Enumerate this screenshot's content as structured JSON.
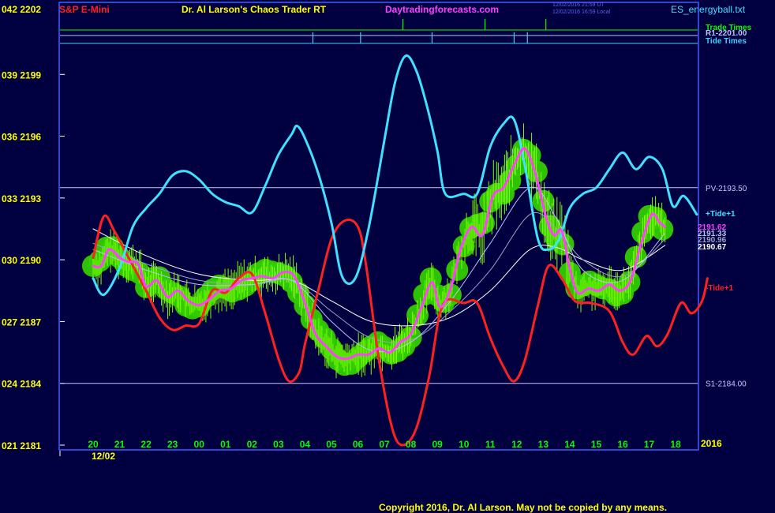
{
  "header": {
    "symbol": "S&P E-Mini",
    "title": "Dr. Al Larson's Chaos Trader RT",
    "site": "Daytradingforecasts.com",
    "stamp1": "12/02/2016 21:59 UT",
    "stamp2": "12/02/2016 16:59 Local",
    "file": "ES_energyball.txt"
  },
  "footer": {
    "copyright": "Copyright 2016, Dr. Al Larson. May not be copied by any means."
  },
  "time_rows": [
    {
      "label": "Trade Times",
      "color": "#00ff00",
      "marks": [
        11.7,
        14.8,
        17.1
      ]
    },
    {
      "label": "R1-2201.00",
      "color": "#c0c0ff",
      "marks": []
    },
    {
      "label": "Tide Times",
      "color": "#40d0ff",
      "marks": [
        8.3,
        10.1,
        12.8,
        15.9,
        16.4
      ]
    }
  ],
  "colors": {
    "background": "#000040",
    "frame": "#4060ff",
    "axis_text": "#ffff00",
    "hour_text": "#00ff00",
    "tide_plus": "#40e0ff",
    "tide_minus": "#ff2020",
    "price": "#ff40ff",
    "band": "#30cc00",
    "bars": "#80ff00"
  },
  "chart_data": {
    "type": "line",
    "title": "S&P E-Mini",
    "y_tick_labels": [
      "042 2202",
      "039 2199",
      "036 2196",
      "033 2193",
      "030 2190",
      "027 2187",
      "024 2184",
      "021 2181"
    ],
    "ylim": [
      2181,
      2202
    ],
    "x_tick_labels": [
      "20",
      "21",
      "22",
      "23",
      "00",
      "01",
      "02",
      "03",
      "04",
      "05",
      "06",
      "07",
      "08",
      "09",
      "10",
      "11",
      "12",
      "13",
      "14",
      "15",
      "16",
      "17",
      "18"
    ],
    "date_label": "12/02",
    "year_label": "2016",
    "levels": [
      {
        "name": "PV-2193.50",
        "value": 2193.5
      },
      {
        "name": "S1-2184.00",
        "value": 2184.0
      }
    ],
    "series": [
      {
        "name": "+Tide+1",
        "color": "#40e0ff",
        "points": [
          [
            0,
            2189.1
          ],
          [
            0.4,
            2188.3
          ],
          [
            1,
            2189.6
          ],
          [
            1.5,
            2191.6
          ],
          [
            2,
            2192.5
          ],
          [
            2.5,
            2193.2
          ],
          [
            3,
            2194.1
          ],
          [
            3.5,
            2194.3
          ],
          [
            4,
            2193.9
          ],
          [
            4.5,
            2193.2
          ],
          [
            5,
            2192.8
          ],
          [
            5.5,
            2192.6
          ],
          [
            6,
            2192.3
          ],
          [
            6.5,
            2193.6
          ],
          [
            7,
            2195.1
          ],
          [
            7.5,
            2196.1
          ],
          [
            7.7,
            2196.5
          ],
          [
            8,
            2195.9
          ],
          [
            8.5,
            2194.2
          ],
          [
            9,
            2191.8
          ],
          [
            9.4,
            2189.2
          ],
          [
            9.9,
            2189.1
          ],
          [
            10.4,
            2191.5
          ],
          [
            11,
            2195.8
          ],
          [
            11.4,
            2198.6
          ],
          [
            11.8,
            2199.9
          ],
          [
            12.2,
            2199.2
          ],
          [
            12.6,
            2197.5
          ],
          [
            13,
            2195.3
          ],
          [
            13.3,
            2193.2
          ],
          [
            14,
            2193.2
          ],
          [
            14.5,
            2193.2
          ],
          [
            15,
            2195.5
          ],
          [
            15.5,
            2196.6
          ],
          [
            15.9,
            2196.8
          ],
          [
            16.3,
            2194.6
          ],
          [
            16.8,
            2191.0
          ],
          [
            17.2,
            2190.5
          ],
          [
            17.6,
            2191.0
          ],
          [
            18,
            2192.5
          ],
          [
            18.5,
            2193.2
          ],
          [
            19,
            2193.5
          ],
          [
            19.5,
            2194.4
          ],
          [
            20,
            2195.2
          ],
          [
            20.5,
            2194.4
          ],
          [
            21,
            2195.0
          ],
          [
            21.5,
            2194.4
          ],
          [
            21.9,
            2192.6
          ],
          [
            22.3,
            2193.1
          ],
          [
            22.8,
            2192.2
          ]
        ]
      },
      {
        "name": "-Tide+1",
        "color": "#ff2020",
        "points": [
          [
            0,
            2190.1
          ],
          [
            0.4,
            2192.1
          ],
          [
            0.8,
            2191.4
          ],
          [
            1.3,
            2190.2
          ],
          [
            2,
            2188.5
          ],
          [
            2.5,
            2187.2
          ],
          [
            3,
            2186.6
          ],
          [
            3.5,
            2186.8
          ],
          [
            4,
            2186.9
          ],
          [
            4.5,
            2188.5
          ],
          [
            5,
            2188.4
          ],
          [
            5.5,
            2189.1
          ],
          [
            6,
            2189.3
          ],
          [
            6.5,
            2187.4
          ],
          [
            7,
            2185.2
          ],
          [
            7.4,
            2184.1
          ],
          [
            7.8,
            2184.6
          ],
          [
            8,
            2185.9
          ],
          [
            8.5,
            2188.5
          ],
          [
            9,
            2191.0
          ],
          [
            9.5,
            2191.9
          ],
          [
            10,
            2191.6
          ],
          [
            10.3,
            2189.8
          ],
          [
            10.8,
            2185.1
          ],
          [
            11.3,
            2181.8
          ],
          [
            11.7,
            2181.0
          ],
          [
            12.2,
            2181.8
          ],
          [
            12.7,
            2184.4
          ],
          [
            13.2,
            2187.8
          ],
          [
            14,
            2187.9
          ],
          [
            14.5,
            2187.9
          ],
          [
            15,
            2186.2
          ],
          [
            15.5,
            2184.8
          ],
          [
            15.9,
            2184.1
          ],
          [
            16.3,
            2185.1
          ],
          [
            16.8,
            2187.8
          ],
          [
            17.2,
            2189.7
          ],
          [
            17.7,
            2189.1
          ],
          [
            18.2,
            2188.0
          ],
          [
            18.8,
            2187.9
          ],
          [
            19.5,
            2187.5
          ],
          [
            20,
            2186.0
          ],
          [
            20.4,
            2185.4
          ],
          [
            20.9,
            2186.3
          ],
          [
            21.3,
            2185.8
          ],
          [
            21.7,
            2186.4
          ],
          [
            22.2,
            2187.9
          ],
          [
            22.6,
            2187.4
          ],
          [
            23,
            2188.0
          ],
          [
            23.2,
            2189.1
          ]
        ]
      },
      {
        "name": "Price",
        "value_label": "2191.62",
        "color": "#ff40ff",
        "points": [
          [
            0,
            2189.7
          ],
          [
            0.3,
            2189.7
          ],
          [
            0.6,
            2190.5
          ],
          [
            1,
            2190.1
          ],
          [
            1.3,
            2189.9
          ],
          [
            1.7,
            2189.8
          ],
          [
            2,
            2188.7
          ],
          [
            2.4,
            2189.0
          ],
          [
            2.8,
            2188.2
          ],
          [
            3.2,
            2188.5
          ],
          [
            3.6,
            2188.0
          ],
          [
            4,
            2187.8
          ],
          [
            4.4,
            2188.1
          ],
          [
            4.8,
            2188.5
          ],
          [
            5.2,
            2188.6
          ],
          [
            5.6,
            2189.0
          ],
          [
            6,
            2189.1
          ],
          [
            6.4,
            2189.2
          ],
          [
            6.8,
            2189.1
          ],
          [
            7.2,
            2189.4
          ],
          [
            7.6,
            2189.2
          ],
          [
            8,
            2187.9
          ],
          [
            8.4,
            2186.4
          ],
          [
            8.8,
            2185.8
          ],
          [
            9.2,
            2185.3
          ],
          [
            9.6,
            2185.2
          ],
          [
            10,
            2185.4
          ],
          [
            10.4,
            2185.4
          ],
          [
            10.8,
            2185.7
          ],
          [
            11.2,
            2185.5
          ],
          [
            11.6,
            2186.0
          ],
          [
            12,
            2186.4
          ],
          [
            12.4,
            2187.7
          ],
          [
            12.8,
            2188.9
          ],
          [
            13.1,
            2187.7
          ],
          [
            13.5,
            2188.6
          ],
          [
            13.9,
            2190.6
          ],
          [
            14.3,
            2191.6
          ],
          [
            14.7,
            2191.2
          ],
          [
            15.1,
            2193.1
          ],
          [
            15.5,
            2193.5
          ],
          [
            15.9,
            2194.6
          ],
          [
            16.3,
            2195.4
          ],
          [
            16.7,
            2194.2
          ],
          [
            17.1,
            2192.1
          ],
          [
            17.4,
            2191.2
          ],
          [
            17.7,
            2191.4
          ],
          [
            18,
            2189.6
          ],
          [
            18.3,
            2188.4
          ],
          [
            18.7,
            2188.6
          ],
          [
            19.1,
            2188.5
          ],
          [
            19.5,
            2188.8
          ],
          [
            19.9,
            2188.5
          ],
          [
            20.3,
            2189.0
          ],
          [
            20.7,
            2190.8
          ],
          [
            21.1,
            2192.2
          ],
          [
            21.4,
            2191.8
          ],
          [
            21.6,
            2191.6
          ]
        ]
      },
      {
        "name": "MA1",
        "value_label": "2191.33",
        "color": "#c0c0ff",
        "points": [
          [
            0,
            2190.5
          ],
          [
            2,
            2189.5
          ],
          [
            4,
            2188.8
          ],
          [
            6,
            2188.8
          ],
          [
            7.5,
            2189.0
          ],
          [
            9,
            2187.0
          ],
          [
            10.5,
            2185.6
          ],
          [
            12,
            2186.0
          ],
          [
            13.5,
            2188.0
          ],
          [
            15,
            2190.8
          ],
          [
            16.5,
            2193.5
          ],
          [
            17.5,
            2192.0
          ],
          [
            18.5,
            2189.5
          ],
          [
            20,
            2189.0
          ],
          [
            21.6,
            2191.3
          ]
        ]
      },
      {
        "name": "MA2",
        "value_label": "2190.96",
        "color": "#a0a0c8",
        "points": [
          [
            0,
            2190.8
          ],
          [
            2,
            2189.8
          ],
          [
            4,
            2189.0
          ],
          [
            6,
            2188.8
          ],
          [
            7.5,
            2189.0
          ],
          [
            9,
            2187.5
          ],
          [
            10.5,
            2186.2
          ],
          [
            12,
            2186.1
          ],
          [
            13.5,
            2187.5
          ],
          [
            15,
            2189.5
          ],
          [
            16.5,
            2192.2
          ],
          [
            17.5,
            2191.5
          ],
          [
            18.5,
            2190.0
          ],
          [
            20,
            2189.2
          ],
          [
            21.6,
            2191.0
          ]
        ]
      },
      {
        "name": "MA3",
        "value_label": "2190.67",
        "color": "#ffffff",
        "points": [
          [
            0,
            2191.5
          ],
          [
            2,
            2190.2
          ],
          [
            4,
            2189.3
          ],
          [
            6,
            2189.0
          ],
          [
            7.5,
            2189.0
          ],
          [
            9,
            2188.0
          ],
          [
            10.5,
            2187.0
          ],
          [
            12,
            2186.8
          ],
          [
            13.5,
            2187.2
          ],
          [
            15,
            2188.5
          ],
          [
            16.5,
            2190.5
          ],
          [
            17.5,
            2190.6
          ],
          [
            18.5,
            2190.0
          ],
          [
            20,
            2189.5
          ],
          [
            21.6,
            2190.7
          ]
        ]
      }
    ]
  }
}
